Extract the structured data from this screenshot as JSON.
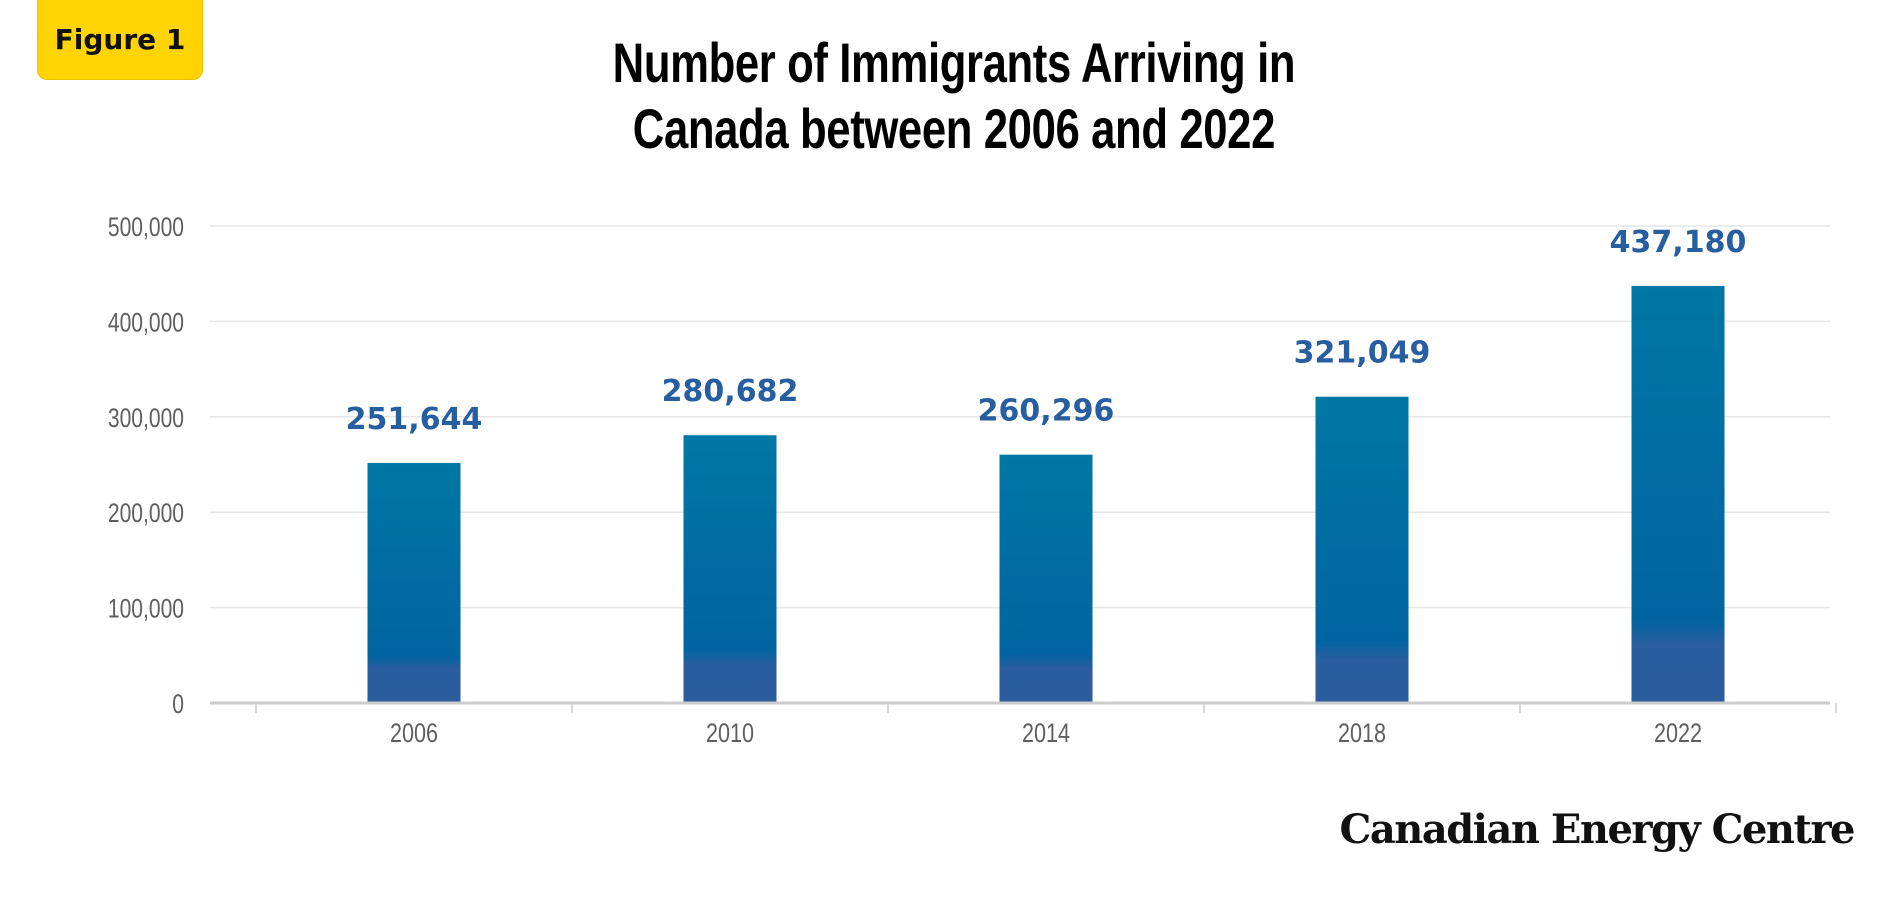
{
  "badge": {
    "label": "Figure 1",
    "color": "#ffd400"
  },
  "chart_data": {
    "type": "bar",
    "title": "Number of Immigrants Arriving in Canada between 2006 and 2022",
    "title_lines": [
      "Number of Immigrants Arriving in",
      "Canada between 2006 and 2022"
    ],
    "xlabel": "",
    "ylabel": "",
    "categories": [
      "2006",
      "2010",
      "2014",
      "2018",
      "2022"
    ],
    "values": [
      251644,
      280682,
      260296,
      321049,
      437180
    ],
    "value_labels": [
      "251,644",
      "280,682",
      "260,296",
      "321,049",
      "437,180"
    ],
    "ylim": [
      0,
      500000
    ],
    "yticks": [
      0,
      100000,
      200000,
      300000,
      400000,
      500000
    ],
    "ytick_labels": [
      "0",
      "100,000",
      "200,000",
      "300,000",
      "400,000",
      "500,000"
    ],
    "grid": true,
    "legend": "none",
    "colors": {
      "bar_top": "#0076a3",
      "bar_bottom": "#2a5c9e",
      "value_label": "#275ea0",
      "tick_label": "#5e5e5e",
      "grid": "#e6e6e6",
      "axis": "#cccccc"
    }
  },
  "brand": {
    "name": "Canadian Energy Centre"
  }
}
